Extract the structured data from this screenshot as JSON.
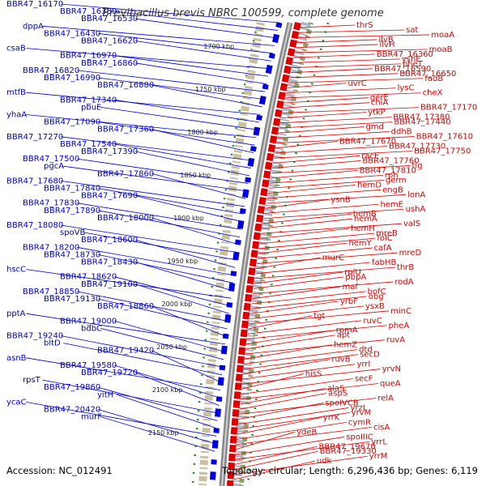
{
  "title": "Brevibacillus brevis NBRC 100599, complete genome",
  "footer": {
    "accession": "Accession: NC_012491",
    "summary": "Topology: circular; Length: 6,296,436 bp; Genes: 6,119"
  },
  "colors": {
    "left_strand": "#0000cc",
    "right_strand": "#dd0000",
    "backbone": "#888888",
    "tick_dots": "#228b22"
  },
  "position_ticks": [
    "1700 kbp",
    "1750 kbp",
    "1800 kbp",
    "1850 kbp",
    "1900 kbp",
    "1950 kbp",
    "2000 kbp",
    "2050 kbp",
    "2100 kbp",
    "2150 kbp"
  ],
  "left_labels": [
    "BBR47_16170",
    "BBR47_16380",
    "BBR47_16530",
    "dppA",
    "BBR47_16430",
    "BBR47_16620",
    "csaB",
    "BBR47_16970",
    "BBR47_16860",
    "BBR47_16820",
    "BBR47_16990",
    "BBR47_16880",
    "mtfB",
    "BBR47_17340",
    "pbuE",
    "yhaA",
    "BBR47_17090",
    "BBR47_17360",
    "BBR47_17270",
    "BBR47_17540",
    "BBR47_17390",
    "BBR47_17500",
    "pgcA",
    "BBR47_17860",
    "BBR47_17680",
    "BBR47_17840",
    "BBR47_17690",
    "BBR47_17830",
    "BBR47_17890",
    "BBR47_18000",
    "BBR47_18080",
    "spoVB",
    "BBR47_18600",
    "BBR47_18200",
    "BBR47_18730",
    "BBR47_18430",
    "hscC",
    "BBR47_18620",
    "BBR47_19100",
    "BBR47_18850",
    "BBR47_19130",
    "BBR47_18860",
    "pptA",
    "BBR47_19000",
    "bdbC",
    "BBR47_19240",
    "bltD",
    "BBR47_19420",
    "asnB",
    "BBR47_19580",
    "BBR47_19720",
    "rpsT",
    "BBR47_19860",
    "yitH",
    "ycaC",
    "BBR47_20420",
    "murF"
  ],
  "right_labels": [
    "thrS",
    "sat",
    "moaA",
    "ilvB",
    "ilvH",
    "moaB",
    "BBR47_16360",
    "yshE",
    "pheT",
    "BBR47_16590",
    "BBR47_16650",
    "fadB",
    "uvrC",
    "lysC",
    "cheX",
    "gerE",
    "chiA",
    "BBR47_17170",
    "ytkP",
    "BBR47_17380",
    "BBR47_17440",
    "gmd",
    "ddhB",
    "BBR47_17610",
    "BBR47_17670",
    "BBR47_17730",
    "BBR47_17750",
    "racE",
    "BBR47_17760",
    "tig",
    "BBR47_17810",
    "rph",
    "germ",
    "hemD",
    "engB",
    "lonA",
    "ysnB",
    "hemE",
    "ushA",
    "hemB",
    "hemA",
    "valS",
    "hemH",
    "mreB",
    "folC",
    "hemY",
    "cafA",
    "mreD",
    "murC",
    "fabHB",
    "thrB",
    "rplU",
    "pbpA",
    "rodA",
    "maf",
    "bofC",
    "obg",
    "yrbF",
    "ysxB",
    "minC",
    "tgt",
    "ruvC",
    "pheA",
    "rpmA",
    "apt",
    "ruvA",
    "hemZ",
    "dtd",
    "secD",
    "ruvB",
    "yrrI",
    "yrvN",
    "hisS",
    "secF",
    "queA",
    "alaS",
    "aspS",
    "relA",
    "spoIVCB",
    "yrzL",
    "yrvM",
    "yrrK",
    "cymR",
    "cisA",
    "ydeB",
    "spoIIIC",
    "yrrL",
    "BBR47_19670",
    "BBR47_19330",
    "yrrM",
    "udk"
  ]
}
